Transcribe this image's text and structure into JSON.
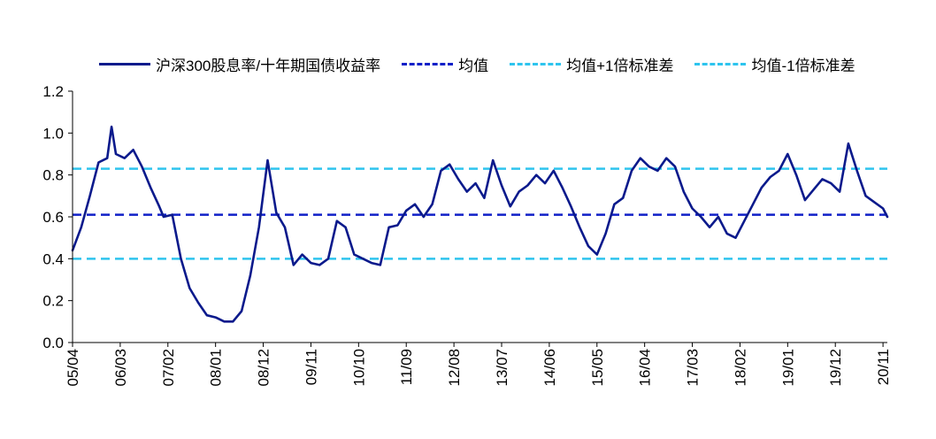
{
  "chart_data": {
    "type": "line",
    "ylim": [
      0.0,
      1.2
    ],
    "yticks": [
      "0.0",
      "0.2",
      "0.4",
      "0.6",
      "0.8",
      "1.0",
      "1.2"
    ],
    "xlim": [
      "2005-04",
      "2020-12"
    ],
    "xticks": [
      "05/04",
      "06/03",
      "07/02",
      "08/01",
      "08/12",
      "09/11",
      "10/10",
      "11/09",
      "12/08",
      "13/07",
      "14/06",
      "15/05",
      "16/04",
      "17/03",
      "18/02",
      "19/01",
      "19/12",
      "20/11"
    ],
    "legend_position": "top",
    "series": [
      {
        "name": "沪深300股息率/十年期国债收益率",
        "style": "solid",
        "color": "#0b1a8c",
        "points": [
          [
            "2005-04",
            0.44
          ],
          [
            "2005-06",
            0.55
          ],
          [
            "2005-08",
            0.7
          ],
          [
            "2005-10",
            0.86
          ],
          [
            "2005-12",
            0.88
          ],
          [
            "2006-01",
            1.03
          ],
          [
            "2006-02",
            0.9
          ],
          [
            "2006-04",
            0.88
          ],
          [
            "2006-06",
            0.92
          ],
          [
            "2006-08",
            0.84
          ],
          [
            "2006-10",
            0.74
          ],
          [
            "2006-12",
            0.65
          ],
          [
            "2007-01",
            0.6
          ],
          [
            "2007-03",
            0.61
          ],
          [
            "2007-05",
            0.4
          ],
          [
            "2007-07",
            0.26
          ],
          [
            "2007-09",
            0.19
          ],
          [
            "2007-11",
            0.13
          ],
          [
            "2008-01",
            0.12
          ],
          [
            "2008-03",
            0.1
          ],
          [
            "2008-05",
            0.1
          ],
          [
            "2008-07",
            0.15
          ],
          [
            "2008-09",
            0.32
          ],
          [
            "2008-11",
            0.55
          ],
          [
            "2009-01",
            0.87
          ],
          [
            "2009-03",
            0.62
          ],
          [
            "2009-05",
            0.55
          ],
          [
            "2009-07",
            0.37
          ],
          [
            "2009-09",
            0.42
          ],
          [
            "2009-11",
            0.38
          ],
          [
            "2010-01",
            0.37
          ],
          [
            "2010-03",
            0.4
          ],
          [
            "2010-05",
            0.58
          ],
          [
            "2010-07",
            0.55
          ],
          [
            "2010-09",
            0.42
          ],
          [
            "2010-11",
            0.4
          ],
          [
            "2011-01",
            0.38
          ],
          [
            "2011-03",
            0.37
          ],
          [
            "2011-05",
            0.55
          ],
          [
            "2011-07",
            0.56
          ],
          [
            "2011-09",
            0.63
          ],
          [
            "2011-11",
            0.66
          ],
          [
            "2012-01",
            0.6
          ],
          [
            "2012-03",
            0.66
          ],
          [
            "2012-05",
            0.82
          ],
          [
            "2012-07",
            0.85
          ],
          [
            "2012-09",
            0.78
          ],
          [
            "2012-11",
            0.72
          ],
          [
            "2013-01",
            0.76
          ],
          [
            "2013-03",
            0.69
          ],
          [
            "2013-05",
            0.87
          ],
          [
            "2013-07",
            0.75
          ],
          [
            "2013-09",
            0.65
          ],
          [
            "2013-11",
            0.72
          ],
          [
            "2014-01",
            0.75
          ],
          [
            "2014-03",
            0.8
          ],
          [
            "2014-05",
            0.76
          ],
          [
            "2014-07",
            0.82
          ],
          [
            "2014-09",
            0.74
          ],
          [
            "2014-11",
            0.65
          ],
          [
            "2015-01",
            0.55
          ],
          [
            "2015-03",
            0.46
          ],
          [
            "2015-05",
            0.42
          ],
          [
            "2015-07",
            0.52
          ],
          [
            "2015-09",
            0.66
          ],
          [
            "2015-11",
            0.69
          ],
          [
            "2016-01",
            0.82
          ],
          [
            "2016-03",
            0.88
          ],
          [
            "2016-05",
            0.84
          ],
          [
            "2016-07",
            0.82
          ],
          [
            "2016-09",
            0.88
          ],
          [
            "2016-11",
            0.84
          ],
          [
            "2017-01",
            0.72
          ],
          [
            "2017-03",
            0.64
          ],
          [
            "2017-05",
            0.6
          ],
          [
            "2017-07",
            0.55
          ],
          [
            "2017-09",
            0.6
          ],
          [
            "2017-11",
            0.52
          ],
          [
            "2018-01",
            0.5
          ],
          [
            "2018-03",
            0.58
          ],
          [
            "2018-05",
            0.66
          ],
          [
            "2018-07",
            0.74
          ],
          [
            "2018-09",
            0.79
          ],
          [
            "2018-11",
            0.82
          ],
          [
            "2019-01",
            0.9
          ],
          [
            "2019-03",
            0.8
          ],
          [
            "2019-05",
            0.68
          ],
          [
            "2019-07",
            0.73
          ],
          [
            "2019-09",
            0.78
          ],
          [
            "2019-11",
            0.76
          ],
          [
            "2020-01",
            0.72
          ],
          [
            "2020-03",
            0.95
          ],
          [
            "2020-05",
            0.82
          ],
          [
            "2020-07",
            0.7
          ],
          [
            "2020-09",
            0.67
          ],
          [
            "2020-11",
            0.64
          ],
          [
            "2020-12",
            0.6
          ]
        ]
      },
      {
        "name": "均值",
        "style": "dashed",
        "color": "#1020c8",
        "value": 0.61
      },
      {
        "name": "均值+1倍标准差",
        "style": "dashed",
        "color": "#2ec4ee",
        "value": 0.83
      },
      {
        "name": "均值-1倍标准差",
        "style": "dashed",
        "color": "#2ec4ee",
        "value": 0.4
      }
    ]
  }
}
